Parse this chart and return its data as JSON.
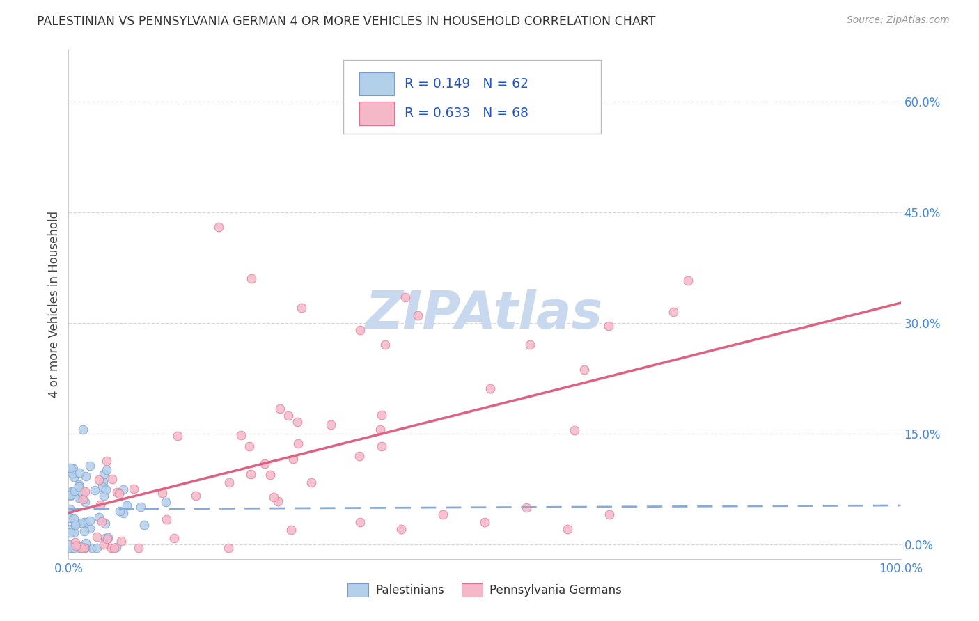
{
  "title": "PALESTINIAN VS PENNSYLVANIA GERMAN 4 OR MORE VEHICLES IN HOUSEHOLD CORRELATION CHART",
  "source": "Source: ZipAtlas.com",
  "ylabel": "4 or more Vehicles in Household",
  "xlim": [
    0.0,
    1.0
  ],
  "ylim": [
    -0.02,
    0.67
  ],
  "xticks": [
    0.0,
    1.0
  ],
  "xtick_labels": [
    "0.0%",
    "100.0%"
  ],
  "yticks": [
    0.0,
    0.15,
    0.3,
    0.45,
    0.6
  ],
  "ytick_labels": [
    "0.0%",
    "15.0%",
    "30.0%",
    "45.0%",
    "60.0%"
  ],
  "palestinian_R": 0.149,
  "palestinian_N": 62,
  "pennger_R": 0.633,
  "pennger_N": 68,
  "palestinian_color": "#b3d0eb",
  "pennger_color": "#f5b8c8",
  "palestinian_edge_color": "#7799cc",
  "pennger_edge_color": "#e07090",
  "palestinian_line_color": "#88aad8",
  "pennger_line_color": "#e06080",
  "watermark_color": "#c8d8ee",
  "background_color": "#ffffff",
  "grid_color": "#cccccc",
  "title_color": "#333333",
  "source_color": "#999999",
  "ylabel_color": "#444444",
  "ytick_color": "#4488dd",
  "xtick_color": "#4488dd",
  "legend_text_color": "#2255cc",
  "legend_border_color": "#bbbbbb"
}
